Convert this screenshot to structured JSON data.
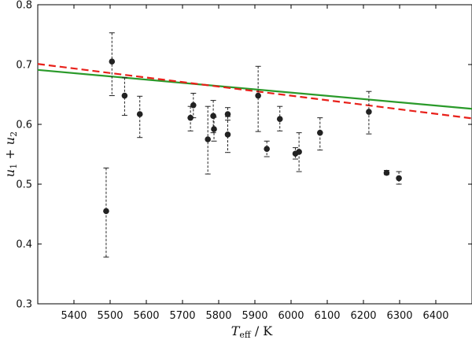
{
  "chart_data": {
    "type": "scatter",
    "title": "",
    "xlabel_main": "T",
    "xlabel_sub": "eff",
    "xlabel_unit": " / K",
    "ylabel_a": "u",
    "ylabel_a_sub": "1",
    "ylabel_op": " + ",
    "ylabel_b": "u",
    "ylabel_b_sub": "2",
    "xlim": [
      5300,
      6500
    ],
    "ylim": [
      0.3,
      0.8
    ],
    "xticks": [
      5400,
      5500,
      5600,
      5700,
      5800,
      5900,
      6000,
      6100,
      6200,
      6300,
      6400
    ],
    "yticks": [
      0.3,
      0.4,
      0.5,
      0.6,
      0.7,
      0.8
    ],
    "grid": false,
    "series": [
      {
        "kind": "errorbar",
        "color": "#222222",
        "points": [
          {
            "x": 5489,
            "y": 0.455,
            "lo": 0.378,
            "hi": 0.527
          },
          {
            "x": 5505,
            "y": 0.705,
            "lo": 0.648,
            "hi": 0.753
          },
          {
            "x": 5540,
            "y": 0.648,
            "lo": 0.615,
            "hi": 0.678
          },
          {
            "x": 5582,
            "y": 0.617,
            "lo": 0.578,
            "hi": 0.647
          },
          {
            "x": 5722,
            "y": 0.611,
            "lo": 0.589,
            "hi": 0.63
          },
          {
            "x": 5730,
            "y": 0.632,
            "lo": 0.611,
            "hi": 0.652
          },
          {
            "x": 5770,
            "y": 0.575,
            "lo": 0.517,
            "hi": 0.63
          },
          {
            "x": 5785,
            "y": 0.614,
            "lo": 0.586,
            "hi": 0.64
          },
          {
            "x": 5787,
            "y": 0.592,
            "lo": 0.572,
            "hi": 0.612
          },
          {
            "x": 5825,
            "y": 0.617,
            "lo": 0.607,
            "hi": 0.628
          },
          {
            "x": 5825,
            "y": 0.583,
            "lo": 0.553,
            "hi": 0.613
          },
          {
            "x": 5909,
            "y": 0.648,
            "lo": 0.588,
            "hi": 0.697
          },
          {
            "x": 5933,
            "y": 0.559,
            "lo": 0.546,
            "hi": 0.572
          },
          {
            "x": 5969,
            "y": 0.609,
            "lo": 0.589,
            "hi": 0.63
          },
          {
            "x": 6012,
            "y": 0.551,
            "lo": 0.542,
            "hi": 0.561
          },
          {
            "x": 6022,
            "y": 0.554,
            "lo": 0.521,
            "hi": 0.586
          },
          {
            "x": 6080,
            "y": 0.586,
            "lo": 0.557,
            "hi": 0.611
          },
          {
            "x": 6215,
            "y": 0.621,
            "lo": 0.584,
            "hi": 0.655
          },
          {
            "x": 6264,
            "y": 0.519,
            "lo": 0.516,
            "hi": 0.523
          },
          {
            "x": 6298,
            "y": 0.51,
            "lo": 0.5,
            "hi": 0.521
          }
        ]
      },
      {
        "kind": "line",
        "color": "#2a9a2a",
        "dash": "solid",
        "x": [
          5300,
          6500
        ],
        "y": [
          0.691,
          0.626
        ]
      },
      {
        "kind": "line",
        "color": "#e8201a",
        "dash": "dashed",
        "x": [
          5300,
          6500
        ],
        "y": [
          0.701,
          0.61
        ]
      }
    ]
  }
}
